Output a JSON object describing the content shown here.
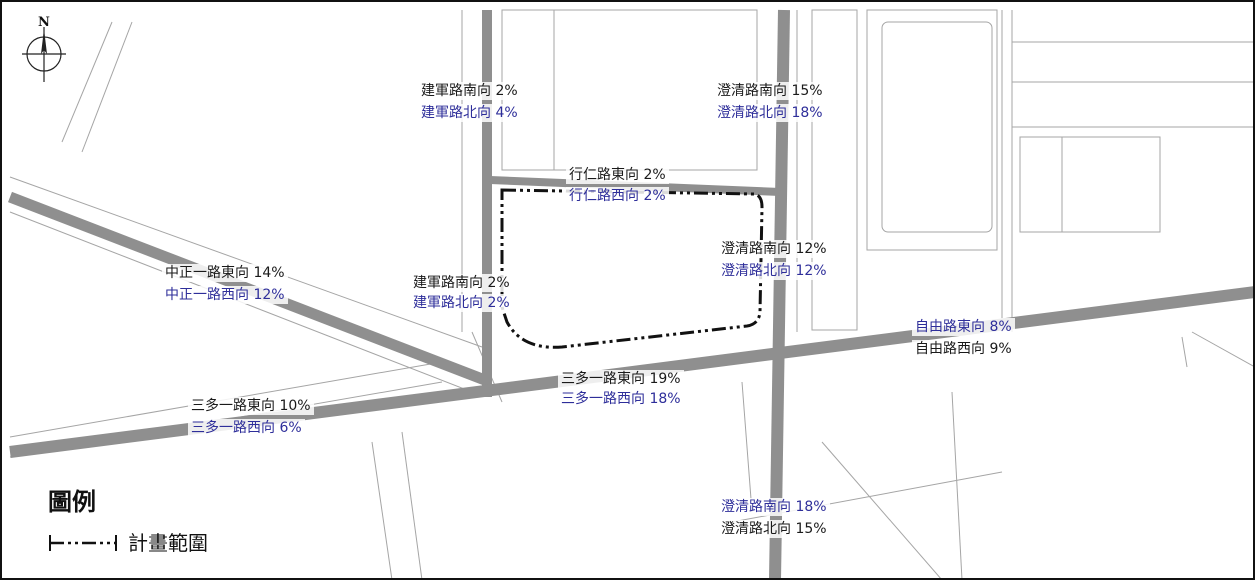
{
  "map": {
    "title": "",
    "north_label": "N",
    "colors": {
      "major_road": "#8f8f8f",
      "outline": "#a5a5a5",
      "label_dark": "#1a1a1a",
      "label_blue": "#2e2e9a",
      "boundary": "#111111"
    },
    "labels": {
      "jianjun_n_s": "建軍路南向 2%",
      "jianjun_n_n": "建軍路北向 4%",
      "chengqing_n_s": "澄清路南向 15%",
      "chengqing_n_n": "澄清路北向 18%",
      "xingren_e": "行仁路東向 2%",
      "xingren_w": "行仁路西向 2%",
      "zhongzheng_e": "中正一路東向 14%",
      "zhongzheng_w": "中正一路西向 12%",
      "jianjun_m_s": "建軍路南向 2%",
      "jianjun_m_n": "建軍路北向 2%",
      "chengqing_m_s": "澄清路南向 12%",
      "chengqing_m_n": "澄清路北向 12%",
      "ziyou_e": "自由路東向 8%",
      "ziyou_w": "自由路西向 9%",
      "sanduo_c_e": "三多一路東向 19%",
      "sanduo_c_w": "三多一路西向 18%",
      "sanduo_w_e": "三多一路東向 10%",
      "sanduo_w_w": "三多一路西向 6%",
      "chengqing_s_s": "澄清路南向 18%",
      "chengqing_s_n": "澄清路北向 15%"
    }
  },
  "legend": {
    "title": "圖例",
    "items": [
      {
        "label": "計畫範圍",
        "icon": "dash-dot-boundary-icon"
      }
    ]
  }
}
